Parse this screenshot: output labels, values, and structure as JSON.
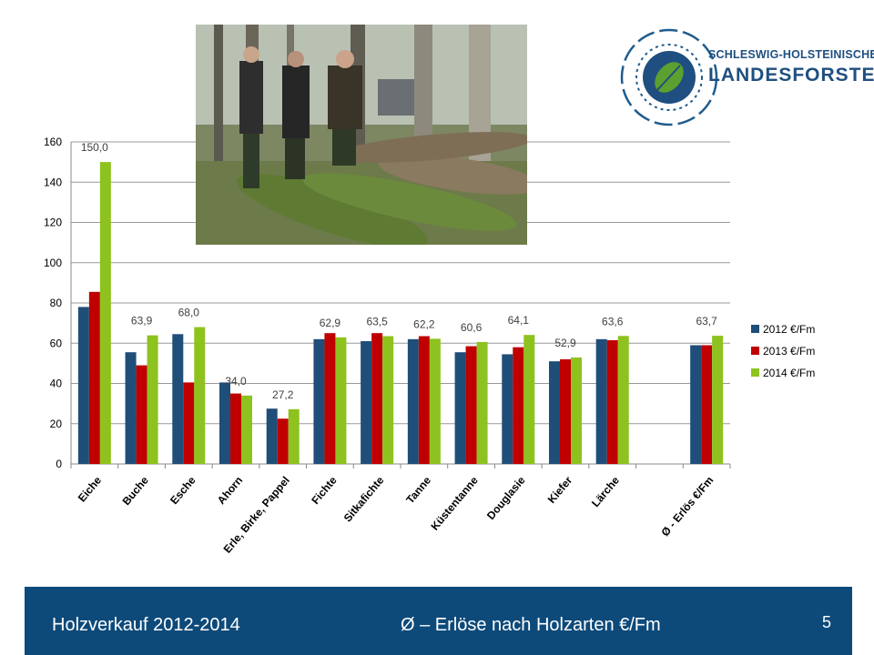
{
  "chart_data": {
    "type": "bar",
    "categories": [
      "Eiche",
      "Buche",
      "Esche",
      "Ahorn",
      "Erle, Birke, Pappel",
      "Fichte",
      "Sitkafichte",
      "Tanne",
      "Küstentanne",
      "Douglasie",
      "Kiefer",
      "Lärche",
      "",
      "Ø - Erlös €/Fm"
    ],
    "series": [
      {
        "name": "2012 €/Fm",
        "values": [
          78,
          55.5,
          64.5,
          40.5,
          27.5,
          62,
          61,
          62,
          55.5,
          54.5,
          51,
          62,
          null,
          59
        ],
        "color": "#1f4e79"
      },
      {
        "name": "2013 €/Fm",
        "values": [
          85.5,
          49,
          40.5,
          35,
          22.5,
          65,
          65,
          63.5,
          58.5,
          58,
          52,
          61.5,
          null,
          59
        ],
        "color": "#c00000"
      },
      {
        "name": "2014 €/Fm",
        "values": [
          150.0,
          63.9,
          68.0,
          34.0,
          27.2,
          62.9,
          63.5,
          62.2,
          60.6,
          64.1,
          52.9,
          63.6,
          null,
          63.7
        ],
        "color": "#8ec21f"
      }
    ],
    "data_labels": [
      "150,0",
      "63,9",
      "68,0",
      "34,0",
      "27,2",
      "62,9",
      "63,5",
      "62,2",
      "60,6",
      "64,1",
      "52,9",
      "63,6",
      "",
      "63,7"
    ],
    "ylim": [
      0,
      160
    ],
    "yticks": [
      0,
      20,
      40,
      60,
      80,
      100,
      120,
      140,
      160
    ],
    "grid": true,
    "legend": "right"
  },
  "logo": {
    "line1": "SCHLESWIG-HOLSTEINISCHE",
    "line2": "LANDESFORSTEN"
  },
  "footer": {
    "left": "Holzverkauf 2012-2014",
    "center": "Ø – Erlöse nach Holzarten  €/Fm",
    "page": "5"
  }
}
